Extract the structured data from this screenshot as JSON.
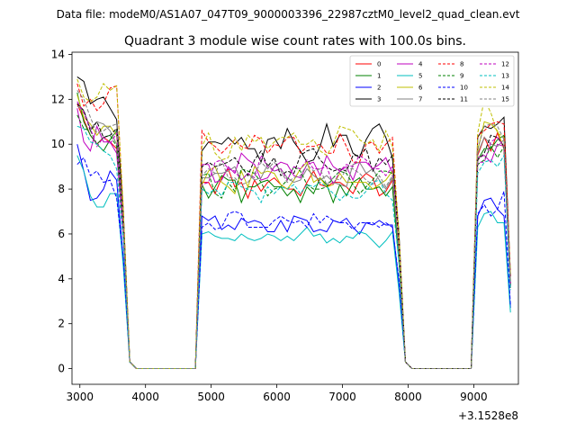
{
  "suptitle": "Data file: modeM0/AS1A07_047T09_9000003396_22987cztM0_level2_quad_clean.evt",
  "chart_data": {
    "type": "line",
    "title": "Quadrant 3 module wise count rates with 100.0s bins.",
    "xlabel": "",
    "ylabel": "",
    "x_offset_label": "+3.1528e8",
    "xlim": [
      2880,
      9680
    ],
    "ylim": [
      -0.7,
      14.1
    ],
    "xticks": [
      3000,
      4000,
      5000,
      6000,
      7000,
      8000,
      9000
    ],
    "xtick_labels": [
      "3000",
      "4000",
      "5000",
      "6000",
      "7000",
      "8000",
      "9000"
    ],
    "yticks": [
      0,
      2,
      4,
      6,
      8,
      10,
      12,
      14
    ],
    "ytick_labels": [
      "0",
      "2",
      "4",
      "6",
      "8",
      "10",
      "12",
      "14"
    ],
    "grid": false,
    "legend_position": "top-right",
    "legend_columns": 4,
    "segments": [
      {
        "start": 2960,
        "end": 3660,
        "step": 100
      },
      {
        "start": 3760,
        "end": 4760,
        "step": 100
      },
      {
        "start": 4860,
        "end": 7860,
        "step": 100
      },
      {
        "start": 7960,
        "end": 8960,
        "step": 100
      },
      {
        "start": 9060,
        "end": 9560,
        "step": 100
      }
    ],
    "series": [
      {
        "name": "0",
        "color": "#ff0000",
        "dash": "solid",
        "phase": 0,
        "levels": [
          10.1,
          0.0,
          8.2,
          0.0,
          10.0
        ]
      },
      {
        "name": "1",
        "color": "#008000",
        "dash": "solid",
        "phase": 7,
        "levels": [
          10.4,
          0.0,
          8.0,
          0.0,
          9.8
        ]
      },
      {
        "name": "2",
        "color": "#0000ff",
        "dash": "solid",
        "phase": 3,
        "levels": [
          8.2,
          0.0,
          6.4,
          0.0,
          7.2
        ]
      },
      {
        "name": "3",
        "color": "#000000",
        "dash": "solid",
        "phase": 12,
        "levels": [
          11.8,
          0.0,
          10.1,
          0.0,
          10.8
        ]
      },
      {
        "name": "4",
        "color": "#bf00bf",
        "dash": "solid",
        "phase": 5,
        "levels": [
          10.2,
          0.0,
          8.9,
          0.0,
          9.9
        ]
      },
      {
        "name": "5",
        "color": "#00bfbf",
        "dash": "solid",
        "phase": 9,
        "levels": [
          7.6,
          0.0,
          5.8,
          0.0,
          6.6
        ]
      },
      {
        "name": "6",
        "color": "#bfbf00",
        "dash": "solid",
        "phase": 2,
        "levels": [
          10.6,
          0.0,
          8.5,
          0.0,
          10.2
        ]
      },
      {
        "name": "7",
        "color": "#808080",
        "dash": "solid",
        "phase": 14,
        "levels": [
          10.8,
          0.0,
          8.6,
          0.0,
          10.1
        ]
      },
      {
        "name": "8",
        "color": "#ff0000",
        "dash": "dashed",
        "phase": 4,
        "levels": [
          11.9,
          0.0,
          9.8,
          0.0,
          10.9
        ]
      },
      {
        "name": "9",
        "color": "#008000",
        "dash": "dashed",
        "phase": 11,
        "levels": [
          10.3,
          0.0,
          8.3,
          0.0,
          9.6
        ]
      },
      {
        "name": "10",
        "color": "#0000ff",
        "dash": "dashed",
        "phase": 6,
        "levels": [
          8.3,
          0.0,
          6.6,
          0.0,
          7.3
        ]
      },
      {
        "name": "11",
        "color": "#000000",
        "dash": "dashed",
        "phase": 1,
        "levels": [
          10.6,
          0.0,
          9.2,
          0.0,
          9.8
        ]
      },
      {
        "name": "12",
        "color": "#bf00bf",
        "dash": "dashed",
        "phase": 8,
        "levels": [
          10.5,
          0.0,
          8.8,
          0.0,
          9.7
        ]
      },
      {
        "name": "13",
        "color": "#00bfbf",
        "dash": "dashed",
        "phase": 13,
        "levels": [
          9.6,
          0.0,
          8.0,
          0.0,
          9.2
        ]
      },
      {
        "name": "14",
        "color": "#bfbf00",
        "dash": "dashed",
        "phase": 10,
        "levels": [
          12.0,
          0.0,
          10.0,
          0.0,
          11.1
        ]
      },
      {
        "name": "15",
        "color": "#808080",
        "dash": "dashed",
        "phase": 15,
        "levels": [
          10.9,
          0.0,
          8.7,
          0.0,
          10.3
        ]
      }
    ]
  }
}
